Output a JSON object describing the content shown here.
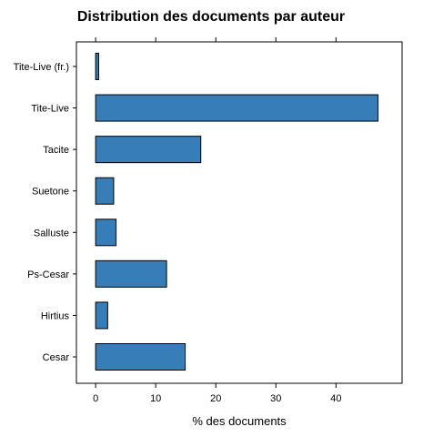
{
  "chart_data": {
    "type": "bar",
    "orientation": "horizontal",
    "title": "Distribution des documents par auteur",
    "xlabel": "% des documents",
    "ylabel": "",
    "categories": [
      "Cesar",
      "Hirtius",
      "Ps-Cesar",
      "Salluste",
      "Suetone",
      "Tacite",
      "Tite-Live",
      "Tite-Live (fr.)"
    ],
    "values": [
      14.9,
      2.0,
      11.8,
      3.4,
      3.0,
      17.5,
      47.0,
      0.5
    ],
    "xlim": [
      -3.2,
      51
    ],
    "xticks": [
      0,
      10,
      20,
      30,
      40
    ],
    "grid": false,
    "bar_color": "#377EB8"
  }
}
